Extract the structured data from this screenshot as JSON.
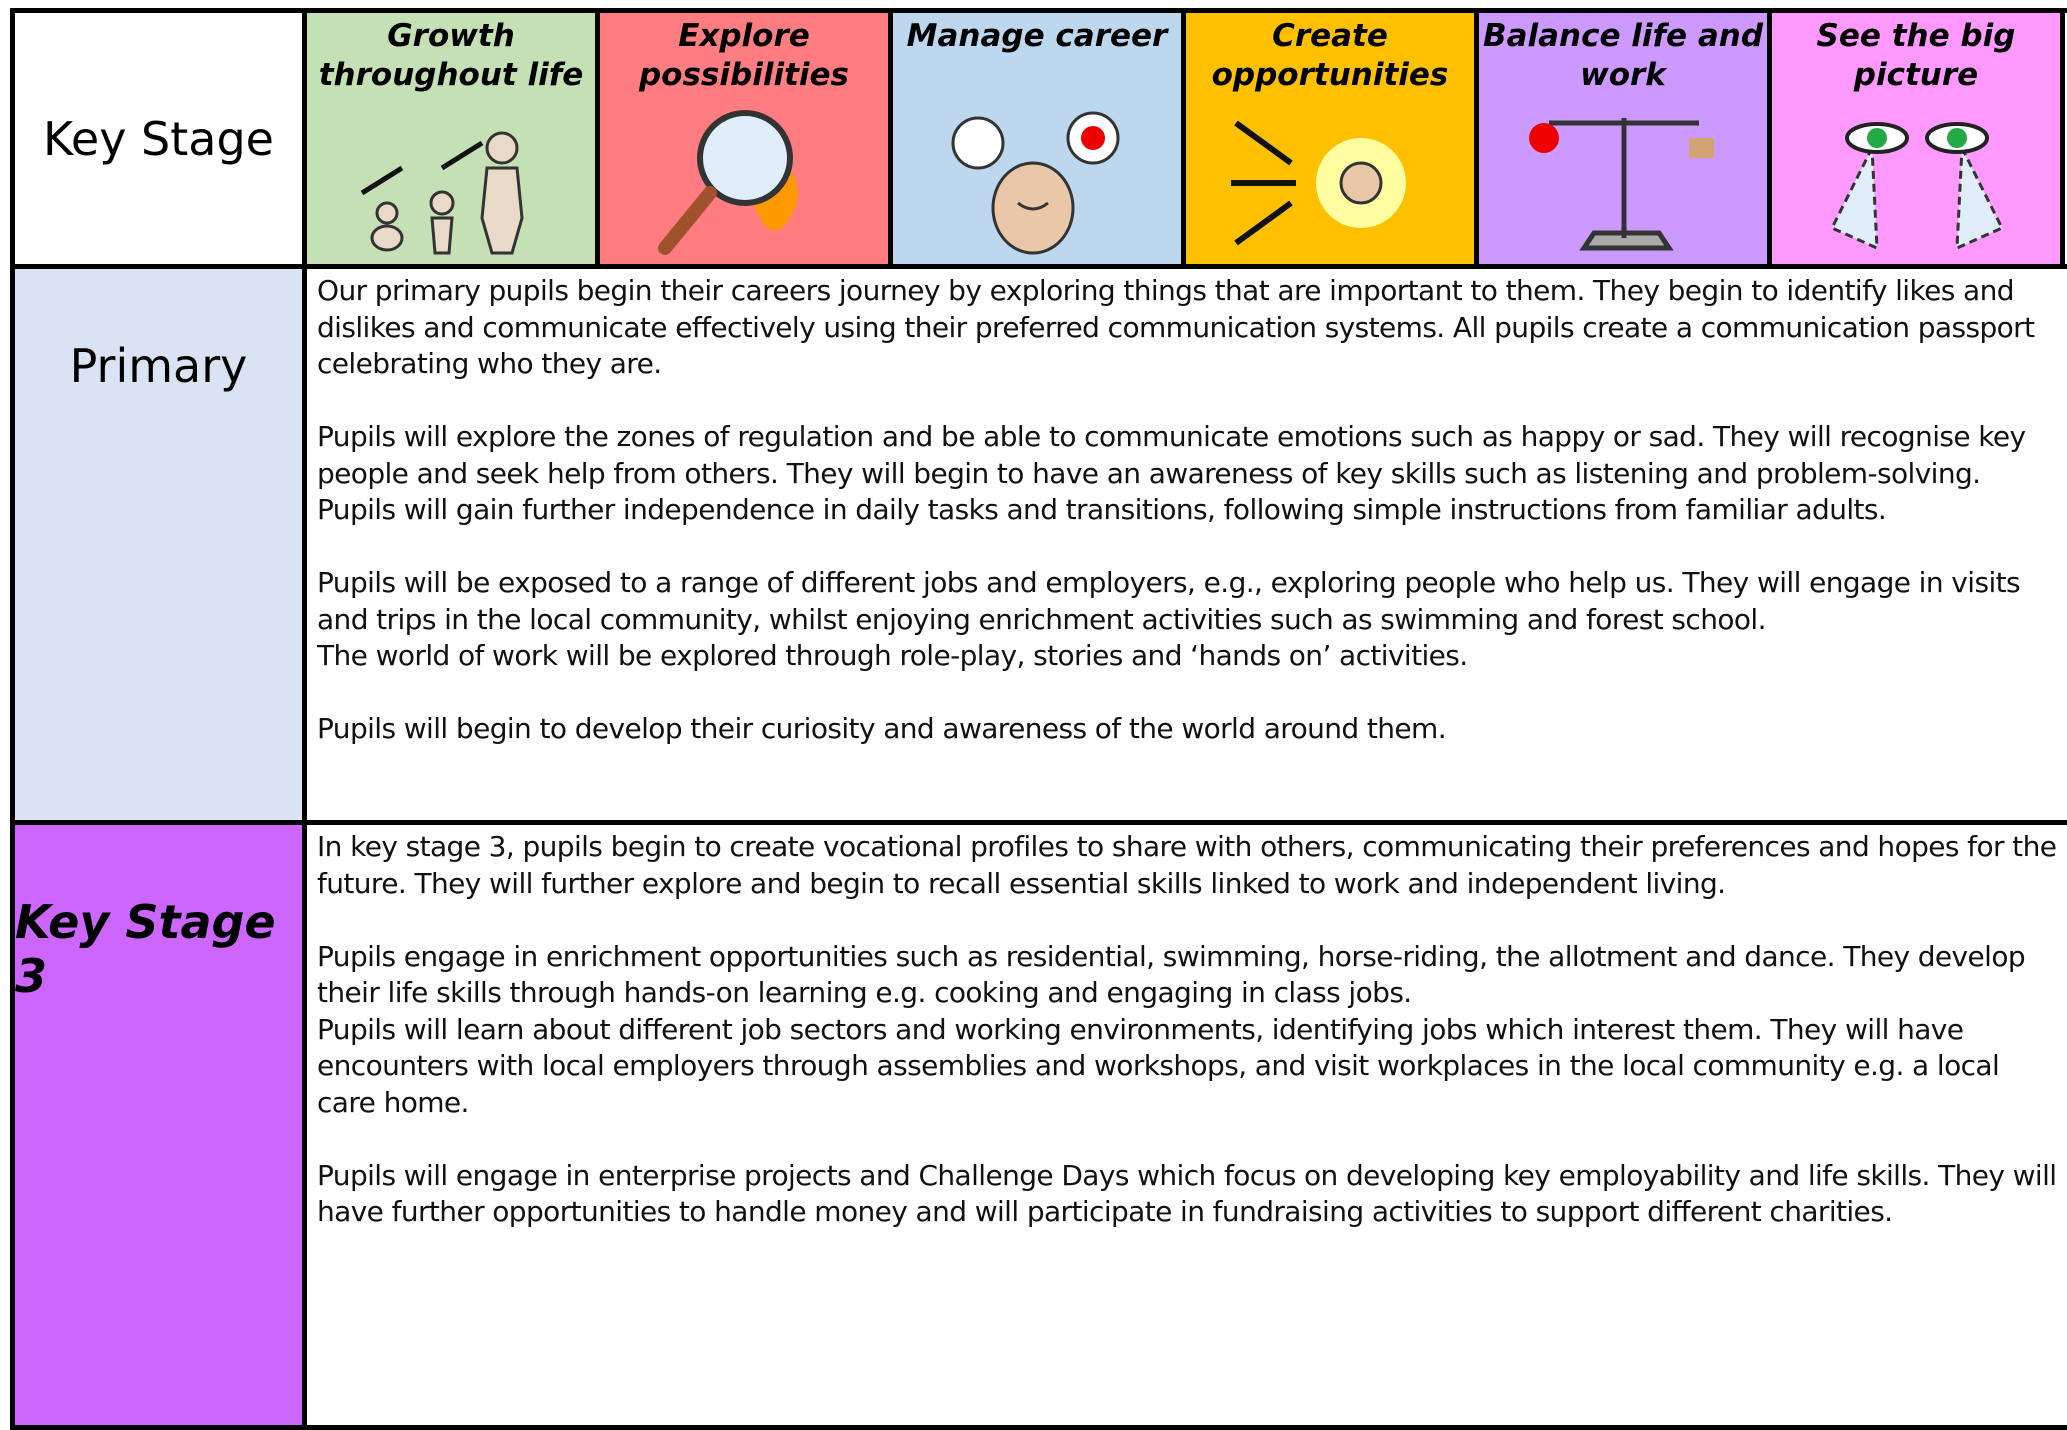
{
  "header": {
    "key_stage_label": "Key Stage",
    "columns": [
      "Growth throughout life",
      "Explore possibilities",
      "Manage career",
      "Create opportunities",
      "Balance life and work",
      "See the big picture"
    ]
  },
  "rows": [
    {
      "label": "Primary",
      "paragraphs": [
        [
          "Our primary pupils begin their careers journey by exploring things that are important to them. They begin to identify likes and dislikes and communicate effectively using their preferred communication systems. All pupils create a communication passport celebrating who they are."
        ],
        [
          "Pupils will explore the zones of regulation and be able to communicate emotions such as happy or sad. They will recognise key people and seek help from others. They will begin to have an awareness of key skills such as listening and problem-solving.  Pupils will gain further independence in daily tasks and transitions, following simple instructions from familiar adults."
        ],
        [
          "Pupils will be exposed to a range of different jobs and employers, e.g., exploring people who help us. They will engage in visits and trips in the local community, whilst enjoying enrichment activities such as swimming and forest school.",
          "The world of work will be explored through role-play, stories and ‘hands on’ activities."
        ],
        [
          "Pupils will begin to develop their curiosity and awareness of the world around them."
        ]
      ]
    },
    {
      "label": "Key Stage 3",
      "paragraphs": [
        [
          "In key stage 3, pupils begin to create vocational profiles to share with others, communicating their preferences and hopes for the future. They will further explore and begin to recall essential skills linked to work and independent living."
        ],
        [
          "Pupils engage in enrichment opportunities such as residential, swimming, horse-riding, the allotment and dance. They develop their life skills through hands-on learning e.g. cooking and engaging in class jobs.",
          "Pupils will learn about different job sectors and working environments, identifying jobs which interest them. They will have encounters with local employers through assemblies and workshops, and visit workplaces in the local community e.g. a local care home."
        ],
        [
          "Pupils will engage in enterprise projects and Challenge Days which focus on developing key employability and life skills. They will have further opportunities to handle money and will participate in fundraising activities to support different charities."
        ]
      ]
    }
  ]
}
